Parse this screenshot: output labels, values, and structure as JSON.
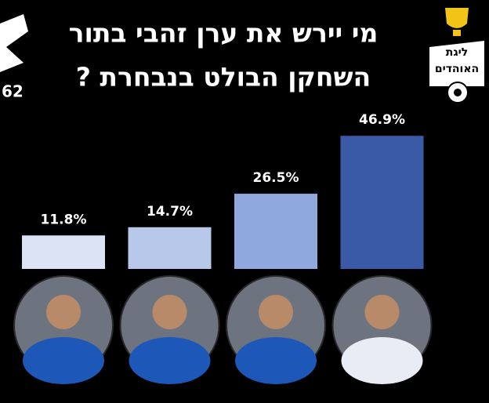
{
  "chart_data": {
    "type": "bar",
    "title": [
      "מי יירש את ערן זהבי בתור",
      "השחקן הבולט בנבחרת ?"
    ],
    "categories": [
      null,
      null,
      null,
      null
    ],
    "values": [
      11.8,
      14.7,
      26.5,
      46.9
    ],
    "value_labels": [
      "11.8%",
      "14.7%",
      "26.5%",
      "46.9%"
    ],
    "colors": [
      "#dbe3f4",
      "#b7c8ea",
      "#8fa9de",
      "#3a5aa8"
    ],
    "logo_left": "62",
    "logo_right": [
      "ליגת",
      "האוהדים"
    ]
  }
}
